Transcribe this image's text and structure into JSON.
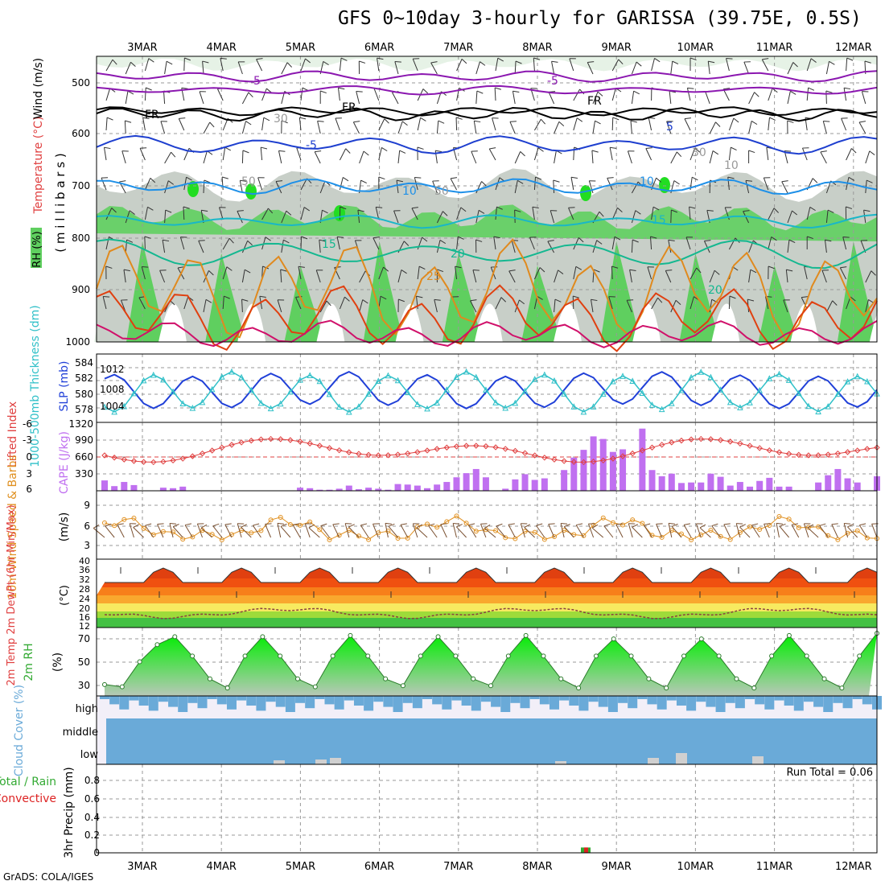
{
  "title": "GFS 0~10day 3-hourly for GARISSA (39.75E, 0.5S)",
  "footer": "GrADS: COLA/IGES",
  "dates": [
    "3MAR",
    "4MAR",
    "5MAR",
    "6MAR",
    "7MAR",
    "8MAR",
    "9MAR",
    "10MAR",
    "11MAR",
    "12MAR"
  ],
  "colors": {
    "rh_light": "#e6f2e6",
    "rh_grey": "#c8cfc8",
    "rh_green": "#5fcf5f",
    "rh_bright": "#22dd22",
    "iso_purple": "#8b17b0",
    "iso_black": "#000000",
    "iso_blue": "#1e3fcf",
    "iso_sky": "#1e90e8",
    "iso_cyan": "#19b7c8",
    "iso_teal": "#14b890",
    "iso_orange": "#e08a1e",
    "iso_red": "#e04010",
    "iso_magenta": "#d0106a",
    "thick": "#2040d8",
    "slp": "#30c0c8",
    "li": "#e04040",
    "cape": "#c070f0",
    "wind_orange": "#e09020",
    "barb": "#7a5030",
    "dewpt": "#8b4040",
    "rh_hi": "#00ee00",
    "rh_lo": "#b8c8b8",
    "cloud": "#6aaad8",
    "cloud_bg": "#f2eff8",
    "low_cloud": "#d0d0d0",
    "precip_green": "#33aa33",
    "precip_red": "#dd2222"
  },
  "panels": {
    "profile": {
      "label_rh": "RH (%)",
      "label_temp": "Temperature (°C)",
      "label_wind": "Wind (m/s)",
      "axis": "( m i l l i b a r s )",
      "pressure_ticks": [
        "500",
        "600",
        "700",
        "800",
        "900",
        "1000"
      ],
      "iso_labels": [
        "-5",
        "-5",
        "FR",
        "FR",
        "FR",
        "-5",
        "5",
        "10",
        "10",
        "15",
        "15",
        "20",
        "20",
        "25",
        "30",
        "30",
        "50",
        "50",
        "10"
      ]
    },
    "thick_slp": {
      "label_thick": "1000-500mb Thickness (dm)",
      "label_slp": "SLP (mb)",
      "left_ticks": [
        "584",
        "582",
        "580",
        "578"
      ],
      "right_ticks": [
        "1012",
        "1008",
        "1004"
      ]
    },
    "cape": {
      "label_li": "Lifted Index",
      "label_cape": "CAPE (J/kg)",
      "left_ticks": [
        "-6",
        "-3",
        "0",
        "3",
        "6"
      ],
      "right_ticks": [
        "1320",
        "990",
        "660",
        "330"
      ]
    },
    "wind10": {
      "label": "10m Wind Speed & Barbs",
      "unit": "(m/s)",
      "ticks": [
        "9",
        "6",
        "3"
      ]
    },
    "temp2m": {
      "label": "2m Temp 2m DewPt (6hr Min/Max)",
      "unit": "(°C)",
      "ticks": [
        "40",
        "36",
        "32",
        "28",
        "24",
        "20",
        "16",
        "12"
      ]
    },
    "rh2m": {
      "label": "2m RH",
      "unit": "(%)",
      "ticks": [
        "70",
        "50",
        "30"
      ]
    },
    "cloud": {
      "label": "Cloud Cover (%)",
      "ticks": [
        "high",
        "middle",
        "low"
      ]
    },
    "precip": {
      "label_total": "Total / Rain",
      "label_conv": "Convective",
      "unit": "3hr Precip (mm)",
      "ticks": [
        "0.8",
        "0.6",
        "0.4",
        "0.2",
        "0"
      ],
      "run_total": "Run Total = 0.06"
    }
  },
  "chart_data": [
    {
      "type": "line",
      "title": "1000-500mb Thickness (dm)",
      "x": [
        "3MAR",
        "4MAR",
        "5MAR",
        "6MAR",
        "7MAR",
        "8MAR",
        "9MAR",
        "10MAR",
        "11MAR",
        "12MAR"
      ],
      "series": [
        {
          "name": "1000-500mb Thickness (dm)",
          "values": [
            581.5,
            582,
            582.4,
            582.6,
            582.3,
            581.8,
            582,
            582.2,
            582.4,
            582.1
          ]
        }
      ]
    },
    {
      "type": "bar",
      "title": "CAPE (J/kg)",
      "x_index_3hr": [
        0,
        1,
        2,
        3,
        6,
        7,
        8,
        20,
        21,
        22,
        23,
        24,
        25,
        26,
        27,
        28,
        29,
        30,
        31,
        32,
        33,
        34,
        35,
        36,
        37,
        38,
        39,
        41,
        42,
        43,
        44,
        45,
        47,
        48,
        49,
        50,
        51,
        52,
        53,
        55,
        56,
        57,
        58,
        59,
        60,
        61,
        62,
        63,
        64,
        65,
        66,
        67,
        68,
        69,
        70,
        71,
        72,
        73,
        74,
        75,
        76,
        77,
        78,
        79
      ],
      "values": [
        200,
        90,
        170,
        110,
        60,
        50,
        80,
        60,
        50,
        20,
        20,
        40,
        100,
        30,
        60,
        40,
        20,
        130,
        120,
        100,
        50,
        120,
        170,
        260,
        340,
        420,
        260,
        40,
        220,
        320,
        210,
        240,
        400,
        640,
        790,
        1050,
        1000,
        750,
        800,
        1200,
        400,
        280,
        330,
        150,
        160,
        160,
        330,
        270,
        100,
        170,
        80,
        190,
        250,
        80,
        80,
        0,
        0,
        160,
        300,
        420,
        240,
        160,
        0,
        280
      ]
    },
    {
      "type": "line",
      "title": "2m RH (%)",
      "ylim": [
        20,
        80
      ],
      "series": [
        {
          "name": "2m RH",
          "values": [
            30,
            28,
            50,
            65,
            72,
            55,
            35,
            27,
            55,
            72,
            55,
            35,
            28,
            55,
            73,
            55,
            35,
            29,
            55,
            72,
            55,
            35,
            29,
            55,
            73,
            55,
            35,
            27,
            55,
            70,
            55,
            35,
            27,
            55,
            70,
            55,
            35,
            27,
            55,
            73,
            55,
            35,
            27,
            55,
            75
          ]
        }
      ]
    },
    {
      "type": "bar",
      "title": "3hr Precip (mm)",
      "ylim": [
        0,
        1
      ],
      "x": [
        "8MAR 18Z"
      ],
      "values": [
        0.06
      ]
    }
  ]
}
